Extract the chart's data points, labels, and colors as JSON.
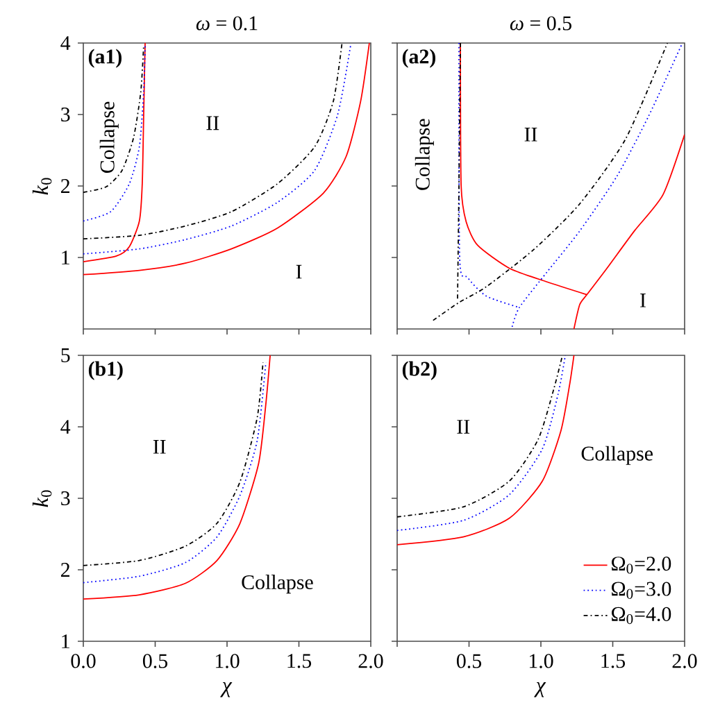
{
  "chart_data": [
    {
      "type": "line",
      "title": "*ω* = 0.1",
      "ylabel": "*k*$_{0}$",
      "xlim": [
        0,
        2
      ],
      "ylim": [
        0,
        4
      ],
      "tick_labels": "y",
      "xticks": [
        {
          "value": 0,
          "label": null
        },
        {
          "value": 0.5,
          "label": null
        },
        {
          "value": 1,
          "label": null
        },
        {
          "value": 1.5,
          "label": null
        },
        {
          "value": 2,
          "label": null
        }
      ],
      "yticks": [
        1,
        2,
        3,
        4
      ],
      "grid": false,
      "legend": false,
      "annotations": [
        "(a1)",
        "Collapse",
        "II",
        "I"
      ],
      "series": [
        {
          "color": "#ff0000",
          "line_style": "solid",
          "x": [
            0,
            0.39,
            0.71,
            1.03,
            1.35,
            1.67,
            1.83,
            1.93,
            1.99
          ],
          "values": [
            0.76,
            0.82,
            0.92,
            1.12,
            1.41,
            1.9,
            2.42,
            3.19,
            4.0
          ]
        },
        {
          "color": "#ff0000",
          "line_style": "solid",
          "x": [
            0,
            0.23,
            0.32,
            0.39,
            0.41,
            0.42,
            0.43
          ],
          "values": [
            0.94,
            1.02,
            1.15,
            1.51,
            2.03,
            3.0,
            4.0
          ]
        },
        {
          "color": "#0000ff",
          "line_style": "dotted",
          "x": [
            0,
            0.39,
            0.71,
            1.03,
            1.35,
            1.61,
            1.77,
            1.86
          ],
          "values": [
            1.05,
            1.12,
            1.25,
            1.44,
            1.77,
            2.22,
            3.0,
            3.97
          ]
        },
        {
          "color": "#0000ff",
          "line_style": "dotted",
          "x": [
            0,
            0.19,
            0.32,
            0.39,
            0.42,
            0.43
          ],
          "values": [
            1.51,
            1.64,
            2.03,
            2.55,
            3.32,
            3.97
          ]
        },
        {
          "color": "#000000",
          "line_style": "dashdot",
          "x": [
            0,
            0.39,
            0.71,
            1.03,
            1.35,
            1.61,
            1.74,
            1.8
          ],
          "values": [
            1.26,
            1.31,
            1.44,
            1.64,
            2.03,
            2.55,
            3.19,
            4.0
          ]
        },
        {
          "color": "#000000",
          "line_style": "dashdot",
          "x": [
            0,
            0.16,
            0.27,
            0.35,
            0.4,
            0.42
          ],
          "values": [
            1.91,
            1.99,
            2.22,
            2.68,
            3.32,
            3.97
          ]
        }
      ]
    },
    {
      "type": "line",
      "title": "*ω* = 0.5",
      "xlim": [
        0,
        2
      ],
      "ylim": [
        0,
        4
      ],
      "tick_labels": false,
      "xticks": [
        {
          "value": 0,
          "label": null
        },
        {
          "value": 0.5,
          "label": null
        },
        {
          "value": 1,
          "label": null
        },
        {
          "value": 1.5,
          "label": null
        },
        {
          "value": 2,
          "label": null
        }
      ],
      "yticks": [
        1,
        2,
        3,
        4
      ],
      "grid": false,
      "legend": false,
      "annotations": [
        "(a2)",
        "Collapse",
        "II",
        "I"
      ],
      "series": [
        {
          "color": "#ff0000",
          "line_style": "solid",
          "x": [
            0.44,
            0.445,
            0.48,
            0.56,
            0.78,
            1.04,
            1.32
          ],
          "values": [
            4.0,
            2.01,
            1.5,
            1.17,
            0.85,
            0.66,
            0.48
          ]
        },
        {
          "color": "#ff0000",
          "line_style": "solid",
          "x": [
            1.23,
            1.27,
            1.32,
            1.46,
            1.65,
            1.85,
            2.0
          ],
          "values": [
            0,
            0.34,
            0.48,
            0.85,
            1.37,
            1.88,
            2.72
          ]
        },
        {
          "color": "#0000ff",
          "line_style": "dotted",
          "x": [
            0.43,
            0.435,
            0.49,
            0.62,
            0.85
          ],
          "values": [
            4.0,
            0.98,
            0.72,
            0.46,
            0.3
          ]
        },
        {
          "color": "#0000ff",
          "line_style": "dotted",
          "x": [
            0.8,
            0.85,
            1.04,
            1.27,
            1.53,
            1.75,
            1.98
          ],
          "values": [
            0.03,
            0.3,
            0.79,
            1.37,
            2.14,
            2.98,
            3.98
          ]
        },
        {
          "color": "#000000",
          "line_style": "dashdot",
          "x": [
            0.44,
            0.43,
            0.42
          ],
          "values": [
            4.0,
            2.0,
            0.4
          ]
        },
        {
          "color": "#000000",
          "line_style": "dashdot",
          "x": [
            0.25,
            0.43,
            0.62,
            0.95,
            1.27,
            1.59,
            1.88
          ],
          "values": [
            0.12,
            0.37,
            0.59,
            1.11,
            1.75,
            2.66,
            4.0
          ]
        }
      ]
    },
    {
      "type": "line",
      "xlabel": "*χ*",
      "ylabel": "*k*$_{0}$",
      "xlim": [
        0,
        2
      ],
      "ylim": [
        1,
        5
      ],
      "xticks": [
        {
          "value": 0,
          "label": "0.0"
        },
        {
          "value": 0.5,
          "label": "0.5"
        },
        {
          "value": 1,
          "label": "1.0"
        },
        {
          "value": 1.5,
          "label": "1.5"
        },
        {
          "value": 2,
          "label": "2.0"
        }
      ],
      "yticks": [
        1,
        2,
        3,
        4,
        5
      ],
      "grid": false,
      "legend": false,
      "annotations": [
        "(b1)",
        "II",
        "Collapse"
      ],
      "series": [
        {
          "color": "#ff0000",
          "line_style": "solid",
          "x": [
            0,
            0.39,
            0.71,
            0.93,
            1.09,
            1.22,
            1.27,
            1.3
          ],
          "values": [
            1.59,
            1.65,
            1.81,
            2.13,
            2.65,
            3.49,
            4.32,
            5.0
          ]
        },
        {
          "color": "#0000ff",
          "line_style": "dotted",
          "x": [
            0,
            0.39,
            0.71,
            0.93,
            1.09,
            1.21,
            1.27
          ],
          "values": [
            1.82,
            1.91,
            2.1,
            2.46,
            3.04,
            3.81,
            4.9
          ]
        },
        {
          "color": "#000000",
          "line_style": "dashdot",
          "x": [
            0,
            0.39,
            0.71,
            0.93,
            1.09,
            1.21,
            1.25
          ],
          "values": [
            2.06,
            2.13,
            2.33,
            2.65,
            3.23,
            4.13,
            4.9
          ]
        }
      ]
    },
    {
      "type": "line",
      "xlabel": "*χ*",
      "xlim": [
        0,
        2
      ],
      "ylim": [
        1,
        5
      ],
      "tick_labels": "x",
      "xticks": [
        {
          "value": 0,
          "label": null
        },
        {
          "value": 0.5,
          "label": "0.5"
        },
        {
          "value": 1,
          "label": "1.0"
        },
        {
          "value": 1.5,
          "label": "1.5"
        },
        {
          "value": 2,
          "label": "2.0"
        }
      ],
      "yticks": [
        1,
        2,
        3,
        4,
        5
      ],
      "grid": false,
      "legend": "bottom right",
      "annotations": [
        "(b2)",
        "II",
        "Collapse"
      ],
      "series": [
        {
          "name": "Ω$_{0}$=2.0",
          "color": "#ff0000",
          "line_style": "solid",
          "x": [
            0,
            0.46,
            0.78,
            1.01,
            1.14,
            1.2,
            1.23
          ],
          "values": [
            2.35,
            2.46,
            2.72,
            3.24,
            3.95,
            4.59,
            5.0
          ]
        },
        {
          "name": "Ω$_{0}$=3.0",
          "color": "#0000ff",
          "line_style": "dotted",
          "x": [
            0,
            0.46,
            0.78,
            1.01,
            1.12,
            1.17
          ],
          "values": [
            2.55,
            2.69,
            3.05,
            3.69,
            4.46,
            5.0
          ]
        },
        {
          "name": "Ω$_{0}$=4.0",
          "color": "#000000",
          "line_style": "dashdot",
          "x": [
            0,
            0.46,
            0.78,
            0.98,
            1.09,
            1.15
          ],
          "values": [
            2.74,
            2.88,
            3.24,
            3.82,
            4.53,
            5.0
          ]
        }
      ]
    }
  ]
}
